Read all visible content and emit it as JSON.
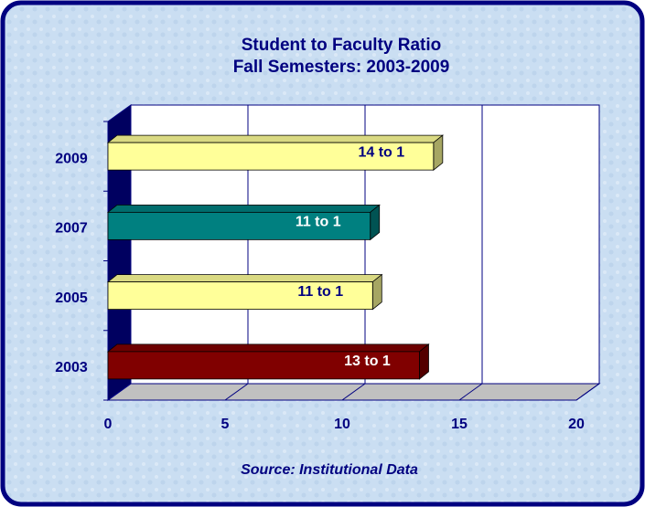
{
  "chart_data": {
    "type": "bar",
    "orientation": "horizontal",
    "title": "Student to Faculty Ratio",
    "subtitle": "Fall Semesters: 2003-2009",
    "annotation": "Source: Institutional Data",
    "categories": [
      "2003",
      "2005",
      "2007",
      "2009"
    ],
    "values": [
      13.3,
      11.3,
      11.2,
      13.9
    ],
    "value_labels": [
      "13 to 1",
      "11 to 1",
      "11 to 1",
      "14 to 1"
    ],
    "colors": [
      "#800000",
      "#ffff99",
      "#008080",
      "#ffff99"
    ],
    "xlim": [
      0,
      20
    ],
    "xticks": [
      0,
      5,
      10,
      15,
      20
    ],
    "grid": true
  }
}
